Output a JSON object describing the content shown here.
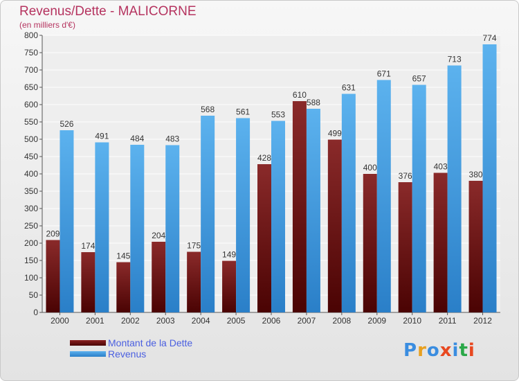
{
  "chart_data": {
    "type": "bar",
    "title": "Revenus/Dette - MALICORNE",
    "subtitle": "(en milliers d'€)",
    "categories": [
      "2000",
      "2001",
      "2002",
      "2003",
      "2004",
      "2005",
      "2006",
      "2007",
      "2008",
      "2009",
      "2010",
      "2011",
      "2012"
    ],
    "series": [
      {
        "name": "Montant de la Dette",
        "color": "#7a0f0f",
        "values": [
          209,
          174,
          145,
          204,
          175,
          149,
          428,
          610,
          499,
          400,
          376,
          403,
          380
        ]
      },
      {
        "name": "Revenus",
        "color": "#3d98e0",
        "values": [
          526,
          491,
          484,
          483,
          568,
          561,
          553,
          588,
          631,
          671,
          657,
          713,
          774
        ]
      }
    ],
    "ylim": [
      0,
      800
    ],
    "yticks": [
      0,
      50,
      100,
      150,
      200,
      250,
      300,
      350,
      400,
      450,
      500,
      550,
      600,
      650,
      700,
      750,
      800
    ],
    "grid": true,
    "legend": "bottom-left"
  },
  "logo": {
    "text": "Proxiti"
  }
}
